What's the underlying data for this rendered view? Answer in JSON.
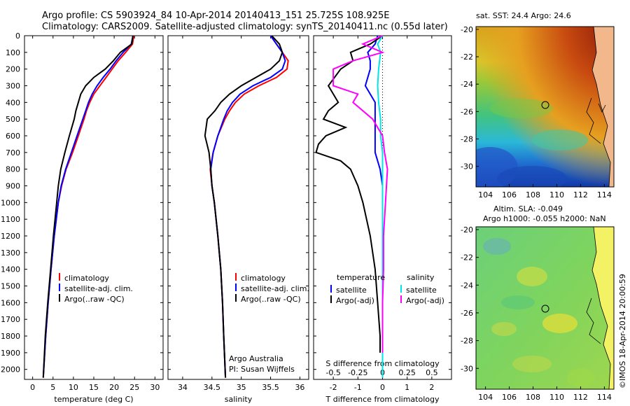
{
  "header": {
    "title_line1": "Argo profile: CS 5903924_84 10-Apr-2014 20140413_151 25.725S 108.925E",
    "title_line2": "Climatology: CARS2009. Satellite-adjusted climatology: synTS_20140411.nc (0.55d later)"
  },
  "colors": {
    "climatology": "#ff0000",
    "satellite": "#0000ff",
    "argo": "#000000",
    "sal_satellite": "#00e5e5",
    "sal_argo": "#ff00ff"
  },
  "y_axis": {
    "label_ticks": [
      "0",
      "100",
      "200",
      "300",
      "400",
      "500",
      "600",
      "700",
      "800",
      "900",
      "1000",
      "1100",
      "1200",
      "1300",
      "1400",
      "1500",
      "1600",
      "1700",
      "1800",
      "1900",
      "2000"
    ]
  },
  "chart_data": [
    {
      "type": "line",
      "name": "temperature-panel",
      "xlabel": "temperature (deg C)",
      "xlim": [
        -2,
        32
      ],
      "ylim": [
        2060,
        0
      ],
      "xticks": [
        "0",
        "5",
        "10",
        "15",
        "20",
        "25",
        "30"
      ],
      "legend": [
        "climatology",
        "satellite-adj. clim.",
        "Argo(..raw -QC)"
      ],
      "legend_position": "lower-middle",
      "series": [
        {
          "name": "climatology",
          "y": [
            0,
            50,
            100,
            150,
            200,
            250,
            300,
            350,
            400,
            450,
            500,
            600,
            700,
            800,
            900,
            1000,
            1200,
            1400,
            1600,
            1800,
            2050
          ],
          "values": [
            24.8,
            24.5,
            22.8,
            21.0,
            19.5,
            18.0,
            16.5,
            15.0,
            14.0,
            13.2,
            12.6,
            11.2,
            9.8,
            8.2,
            7.1,
            6.3,
            5.3,
            4.5,
            3.8,
            3.2,
            2.6
          ]
        },
        {
          "name": "satellite-adj. clim.",
          "y": [
            0,
            50,
            100,
            150,
            200,
            250,
            300,
            350,
            400,
            450,
            500,
            600,
            700,
            800,
            900,
            1000,
            1200,
            1400,
            1600,
            1800,
            2050
          ],
          "values": [
            24.6,
            24.2,
            22.2,
            20.5,
            19.0,
            17.3,
            15.8,
            14.6,
            13.7,
            13.0,
            12.3,
            10.9,
            9.5,
            8.1,
            7.0,
            6.3,
            5.3,
            4.5,
            3.8,
            3.2,
            2.6
          ]
        },
        {
          "name": "Argo(..raw -QC)",
          "y": [
            0,
            50,
            100,
            150,
            200,
            250,
            300,
            350,
            400,
            450,
            500,
            600,
            700,
            800,
            900,
            1000,
            1200,
            1400,
            1600,
            1800,
            2050
          ],
          "values": [
            24.6,
            24.3,
            21.5,
            19.8,
            17.8,
            15.0,
            13.0,
            11.8,
            11.2,
            10.6,
            10.2,
            9.0,
            7.9,
            6.9,
            6.3,
            5.9,
            5.1,
            4.4,
            3.7,
            3.1,
            2.6
          ]
        }
      ]
    },
    {
      "type": "line",
      "name": "salinity-panel",
      "xlabel": "salinity",
      "xlim": [
        33.75,
        36.15
      ],
      "ylim": [
        2060,
        0
      ],
      "xticks": [
        "34",
        "34.5",
        "35",
        "35.5",
        "36"
      ],
      "legend": [
        "climatology",
        "satellite-adj. clim.",
        "Argo(..raw -QC)"
      ],
      "annotation": [
        "Argo Australia",
        "PI: Susan Wijffels"
      ],
      "series": [
        {
          "name": "climatology",
          "y": [
            0,
            50,
            100,
            150,
            200,
            250,
            300,
            350,
            400,
            450,
            500,
            600,
            700,
            800,
            900,
            1000,
            1200,
            1400,
            1600,
            1800,
            2050
          ],
          "values": [
            35.5,
            35.6,
            35.7,
            35.8,
            35.78,
            35.6,
            35.3,
            35.05,
            34.9,
            34.8,
            34.72,
            34.6,
            34.52,
            34.47,
            34.5,
            34.54,
            34.6,
            34.65,
            34.68,
            34.7,
            34.73
          ]
        },
        {
          "name": "satellite-adj. clim.",
          "y": [
            0,
            50,
            100,
            150,
            200,
            250,
            300,
            350,
            400,
            450,
            500,
            600,
            700,
            800,
            900,
            1000,
            1200,
            1400,
            1600,
            1800,
            2050
          ],
          "values": [
            35.5,
            35.6,
            35.7,
            35.75,
            35.7,
            35.5,
            35.2,
            34.98,
            34.85,
            34.76,
            34.7,
            34.6,
            34.52,
            34.48,
            34.5,
            34.54,
            34.6,
            34.65,
            34.68,
            34.7,
            34.73
          ]
        },
        {
          "name": "Argo(..raw -QC)",
          "y": [
            0,
            50,
            100,
            150,
            200,
            250,
            300,
            350,
            400,
            450,
            500,
            600,
            700,
            800,
            900,
            1000,
            1200,
            1400,
            1600,
            1800,
            2050
          ],
          "values": [
            35.52,
            35.65,
            35.7,
            35.65,
            35.5,
            35.25,
            35.0,
            34.8,
            34.65,
            34.55,
            34.42,
            34.38,
            34.45,
            34.48,
            34.5,
            34.54,
            34.6,
            34.65,
            34.68,
            34.7,
            34.73
          ]
        }
      ]
    },
    {
      "type": "line",
      "name": "difference-panel",
      "xlabel_bottom": "T difference from climatology",
      "xlabel_top": "S difference from climatology",
      "xlim": [
        -2.8,
        2.8
      ],
      "ylim": [
        2060,
        0
      ],
      "xticks_bottom": [
        "-2",
        "-1",
        "0",
        "1",
        "2"
      ],
      "xticks_top": [
        "-0.5",
        "-0.25",
        "0",
        "0.25",
        "0.5"
      ],
      "legend_headers": [
        "temperature",
        "salinity"
      ],
      "legend": [
        "satellite",
        "Argo(-adj)",
        "satellite",
        "Argo(-adj)"
      ],
      "series": [
        {
          "name": "temperature satellite",
          "y": [
            0,
            50,
            100,
            150,
            200,
            300,
            400,
            500,
            600,
            700,
            800,
            900,
            1000,
            1200,
            1400,
            1600,
            1800,
            2050
          ],
          "values": [
            -0.2,
            -0.3,
            -0.6,
            -0.5,
            -0.5,
            -0.7,
            -0.3,
            -0.3,
            -0.3,
            -0.3,
            -0.1,
            0,
            0,
            0,
            0,
            0,
            0,
            0
          ]
        },
        {
          "name": "temperature Argo(-adj)",
          "y": [
            0,
            50,
            100,
            150,
            200,
            300,
            400,
            450,
            500,
            550,
            600,
            650,
            700,
            750,
            800,
            900,
            1000,
            1200,
            1400,
            1600,
            1800,
            1900
          ],
          "values": [
            0,
            -0.5,
            -1.3,
            -1.2,
            -1.7,
            -2.2,
            -1.8,
            -2.2,
            -2.4,
            -1.5,
            -2.3,
            -2.6,
            -2.7,
            -1.7,
            -1.3,
            -1.0,
            -0.8,
            -0.5,
            -0.3,
            -0.2,
            -0.1,
            -0.1
          ]
        },
        {
          "name": "salinity satellite",
          "y": [
            0,
            50,
            100,
            200,
            300,
            400,
            500,
            600,
            700,
            800,
            900,
            1000,
            1200,
            1400,
            1600,
            1800,
            2050
          ],
          "values": [
            0,
            -0.05,
            -0.02,
            -0.04,
            -0.05,
            -0.04,
            -0.02,
            -0.02,
            0,
            0,
            0,
            0,
            0,
            0,
            0,
            0,
            0
          ]
        },
        {
          "name": "salinity Argo(-adj)",
          "y": [
            0,
            50,
            100,
            150,
            200,
            300,
            350,
            400,
            500,
            600,
            700,
            800,
            900,
            1000,
            1200,
            1400,
            1600,
            1800,
            1900
          ],
          "values": [
            0,
            -0.2,
            0,
            -0.3,
            -0.5,
            -0.5,
            -0.25,
            -0.3,
            -0.1,
            0,
            0.02,
            0.05,
            0.04,
            0.03,
            0.01,
            0.01,
            0,
            0,
            0
          ]
        }
      ]
    },
    {
      "type": "heatmap",
      "name": "sst-map",
      "title": "sat. SST: 24.4  Argo: 24.6",
      "xticks": [
        "104",
        "106",
        "108",
        "110",
        "112",
        "114"
      ],
      "yticks": [
        "-20",
        "-22",
        "-24",
        "-26",
        "-28",
        "-30"
      ],
      "xlim": [
        103.2,
        114.8
      ],
      "ylim": [
        -31.5,
        -19.8
      ],
      "marker": {
        "lon": 108.925,
        "lat": -25.725
      }
    },
    {
      "type": "heatmap",
      "name": "sla-map",
      "title_line1": "Altim. SLA: -0.049",
      "title_line2": "Argo h1000: -0.055 h2000: NaN",
      "xticks": [
        "104",
        "106",
        "108",
        "110",
        "112",
        "114"
      ],
      "yticks": [
        "-20",
        "-22",
        "-24",
        "-26",
        "-28",
        "-30"
      ],
      "xlim": [
        103.2,
        114.8
      ],
      "ylim": [
        -31.5,
        -19.8
      ],
      "marker": {
        "lon": 108.925,
        "lat": -25.725
      }
    }
  ],
  "side_label": "©IMOS 18-Apr-2014 20:00:59"
}
